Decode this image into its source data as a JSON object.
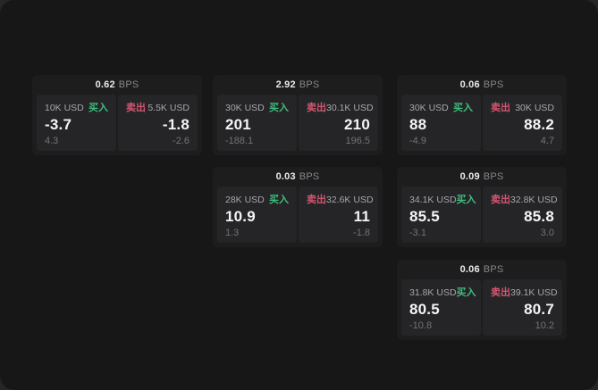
{
  "labels": {
    "buy": "买入",
    "sell": "卖出",
    "bps_unit": "BPS"
  },
  "colors": {
    "buy_green": "#3fbd7d",
    "sell_red": "#d35671",
    "window_background": "#171718",
    "card_background": "#1d1d1e",
    "panel_background": "#252528"
  },
  "cards": [
    {
      "bps": "0.62",
      "buy": {
        "amount": "10K USD",
        "value": "-3.7",
        "sub": "4.3"
      },
      "sell": {
        "amount": "5.5K USD",
        "value": "-1.8",
        "sub": "-2.6"
      }
    },
    {
      "bps": "2.92",
      "buy": {
        "amount": "30K USD",
        "value": "201",
        "sub": "-188.1"
      },
      "sell": {
        "amount": "30.1K USD",
        "value": "210",
        "sub": "196.5"
      }
    },
    {
      "bps": "0.06",
      "buy": {
        "amount": "30K USD",
        "value": "88",
        "sub": "-4.9"
      },
      "sell": {
        "amount": "30K USD",
        "value": "88.2",
        "sub": "4.7"
      }
    },
    {
      "bps": "0.03",
      "buy": {
        "amount": "28K USD",
        "value": "10.9",
        "sub": "1.3"
      },
      "sell": {
        "amount": "32.6K USD",
        "value": "11",
        "sub": "-1.8"
      }
    },
    {
      "bps": "0.09",
      "buy": {
        "amount": "34.1K USD",
        "value": "85.5",
        "sub": "-3.1"
      },
      "sell": {
        "amount": "32.8K USD",
        "value": "85.8",
        "sub": "3.0"
      }
    },
    {
      "bps": "0.06",
      "buy": {
        "amount": "31.8K USD",
        "value": "80.5",
        "sub": "-10.8"
      },
      "sell": {
        "amount": "39.1K USD",
        "value": "80.7",
        "sub": "10.2"
      }
    }
  ]
}
